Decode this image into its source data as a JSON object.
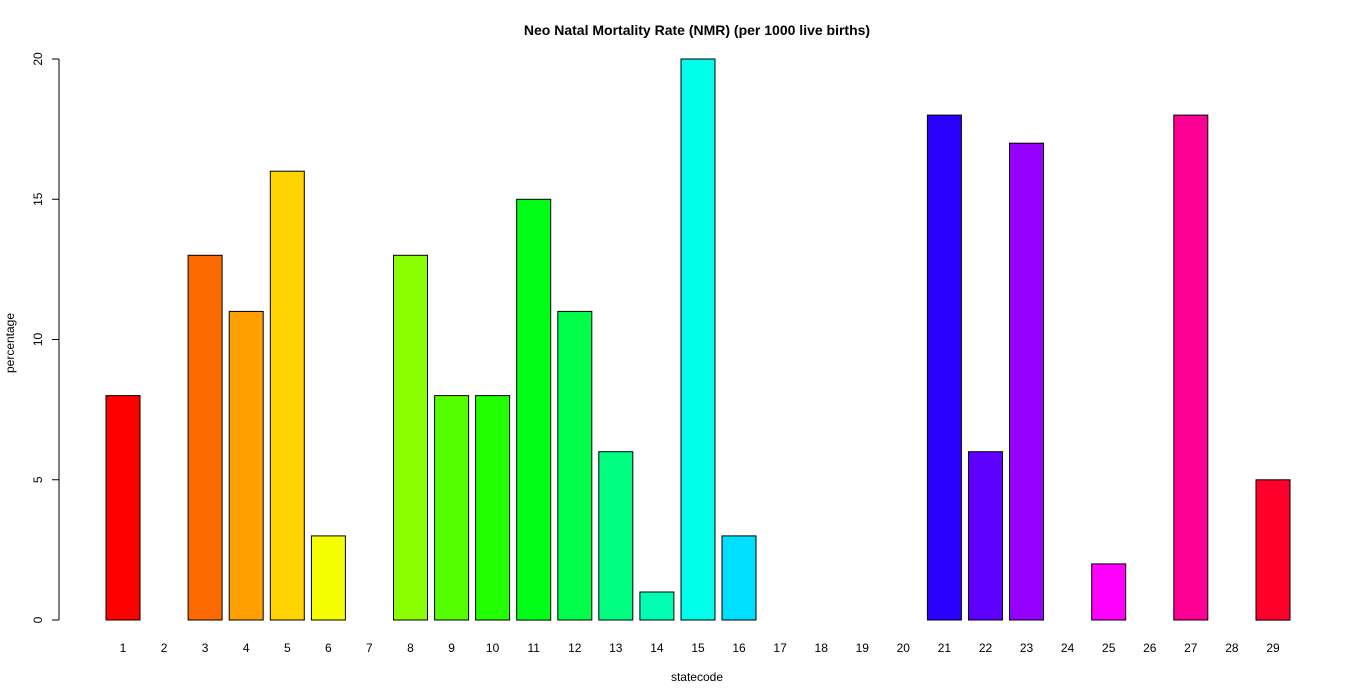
{
  "chart_data": {
    "type": "bar",
    "title": "Neo Natal Mortality Rate (NMR) (per 1000 live births)",
    "xlabel": "statecode",
    "ylabel": "percentage",
    "categories": [
      "1",
      "2",
      "3",
      "4",
      "5",
      "6",
      "7",
      "8",
      "9",
      "10",
      "11",
      "12",
      "13",
      "14",
      "15",
      "16",
      "17",
      "18",
      "19",
      "20",
      "21",
      "22",
      "23",
      "24",
      "25",
      "26",
      "27",
      "28",
      "29"
    ],
    "values": [
      8,
      0,
      13,
      11,
      16,
      3,
      0,
      13,
      8,
      8,
      15,
      11,
      6,
      1,
      20,
      3,
      0,
      0,
      0,
      0,
      18,
      6,
      17,
      0,
      2,
      0,
      18,
      0,
      5
    ],
    "colors": [
      "#FF0000",
      "#FF3500",
      "#FF6A00",
      "#FF9F00",
      "#FFD400",
      "#F5FF00",
      "#C0FF00",
      "#8BFF00",
      "#56FF00",
      "#21FF00",
      "#00FF16",
      "#00FF4B",
      "#00FF80",
      "#00FFB5",
      "#00FFEA",
      "#00DFFF",
      "#00AAFF",
      "#0075FF",
      "#0040FF",
      "#000BFF",
      "#2A00FF",
      "#5F00FF",
      "#9500FF",
      "#CA00FF",
      "#FF00FF",
      "#FF00CA",
      "#FF0095",
      "#FF0060",
      "#FF002B"
    ],
    "ylim": [
      0,
      20
    ],
    "yticks": [
      0,
      5,
      10,
      15,
      20
    ],
    "grid": false,
    "legend": "none"
  }
}
